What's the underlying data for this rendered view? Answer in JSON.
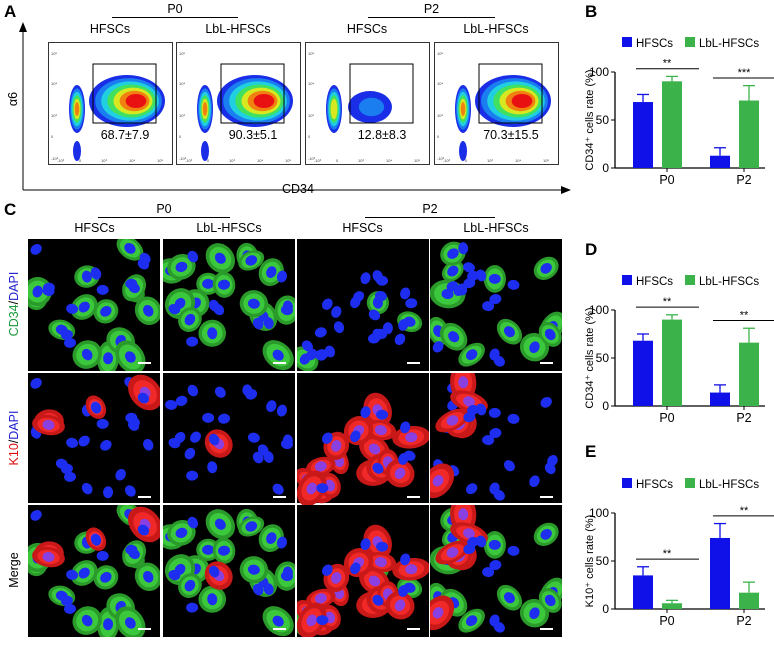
{
  "panel_a": {
    "label": "A",
    "groups": [
      "P0",
      "P2"
    ],
    "samples": [
      "HFSCs",
      "LbL-HFSCs",
      "HFSCs",
      "LbL-HFSCs"
    ],
    "gate_values": [
      "68.7±7.9",
      "90.3±5.1",
      "12.8±8.3",
      "70.3±15.5"
    ],
    "y_axis_label": "α6",
    "x_axis_label": "CD34",
    "y_ticks": [
      "10⁵",
      "10⁴",
      "10³",
      "0",
      "-10³"
    ],
    "x_ticks": [
      "-10³",
      "0",
      "10³",
      "10⁴",
      "10⁵"
    ]
  },
  "panel_c": {
    "label": "C",
    "groups": [
      "P0",
      "P2"
    ],
    "samples": [
      "HFSCs",
      "LbL-HFSCs",
      "HFSCs",
      "LbL-HFSCs"
    ],
    "row_labels": [
      {
        "parts": [
          {
            "text": "CD34",
            "color": "#1a9a3a"
          },
          {
            "text": "/",
            "color": "#000"
          },
          {
            "text": "DAPI",
            "color": "#1f1fd0"
          }
        ]
      },
      {
        "parts": [
          {
            "text": "K10",
            "color": "#e01010"
          },
          {
            "text": "/",
            "color": "#000"
          },
          {
            "text": "DAPI",
            "color": "#1f1fd0"
          }
        ]
      },
      {
        "parts": [
          {
            "text": "Merge",
            "color": "#000"
          }
        ]
      }
    ]
  },
  "colors": {
    "hfscs": "#1010e8",
    "lbl": "#3cb34a"
  },
  "chart_data": [
    {
      "panel": "B",
      "type": "bar",
      "categories": [
        "P0",
        "P2"
      ],
      "ylabel": "CD34⁺ cells rate (%)",
      "ylim": [
        0,
        100
      ],
      "yticks": [
        "0",
        "50",
        "100"
      ],
      "series": [
        {
          "name": "HFSCs",
          "values": [
            68.7,
            12.8
          ],
          "errors": [
            7.9,
            8.3
          ]
        },
        {
          "name": "LbL-HFSCs",
          "values": [
            90.3,
            70.3
          ],
          "errors": [
            5.1,
            15.5
          ]
        }
      ],
      "significance": [
        "**",
        "***"
      ],
      "legend": "top"
    },
    {
      "panel": "D",
      "type": "bar",
      "categories": [
        "P0",
        "P2"
      ],
      "ylabel": "CD34⁺ cells rate (%)",
      "ylim": [
        0,
        100
      ],
      "yticks": [
        "0",
        "50",
        "100"
      ],
      "series": [
        {
          "name": "HFSCs",
          "values": [
            68,
            14
          ],
          "errors": [
            7,
            8
          ]
        },
        {
          "name": "LbL-HFSCs",
          "values": [
            90,
            66
          ],
          "errors": [
            5,
            15
          ]
        }
      ],
      "significance": [
        "**",
        "**"
      ],
      "legend": "top"
    },
    {
      "panel": "E",
      "type": "bar",
      "categories": [
        "P0",
        "P2"
      ],
      "ylabel": "K10⁺ cells rate (%)",
      "ylim": [
        0,
        100
      ],
      "yticks": [
        "0",
        "50",
        "100"
      ],
      "series": [
        {
          "name": "HFSCs",
          "values": [
            35,
            74
          ],
          "errors": [
            9,
            15
          ]
        },
        {
          "name": "LbL-HFSCs",
          "values": [
            6,
            17
          ],
          "errors": [
            3,
            11
          ]
        }
      ],
      "significance": [
        "**",
        "**"
      ],
      "legend": "top"
    }
  ]
}
